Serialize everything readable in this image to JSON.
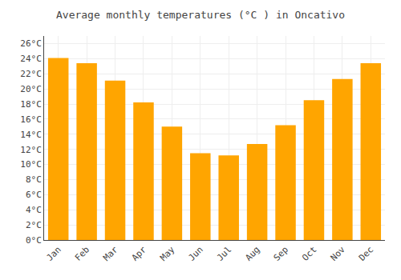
{
  "chart_data": {
    "type": "bar",
    "title": "Average monthly temperatures (°C ) in Oncativo",
    "categories": [
      "Jan",
      "Feb",
      "Mar",
      "Apr",
      "May",
      "Jun",
      "Jul",
      "Aug",
      "Sep",
      "Oct",
      "Nov",
      "Dec"
    ],
    "values": [
      24.1,
      23.4,
      21.1,
      18.2,
      15.0,
      11.5,
      11.2,
      12.7,
      15.2,
      18.5,
      21.3,
      23.4
    ],
    "color": "#FFA500",
    "ylim": [
      0,
      27
    ],
    "yticks": [
      {
        "value": 0,
        "label": "0°C"
      },
      {
        "value": 2,
        "label": "2°C"
      },
      {
        "value": 4,
        "label": "4°C"
      },
      {
        "value": 6,
        "label": "6°C"
      },
      {
        "value": 8,
        "label": "8°C"
      },
      {
        "value": 10,
        "label": "10°C"
      },
      {
        "value": 12,
        "label": "12°C"
      },
      {
        "value": 14,
        "label": "14°C"
      },
      {
        "value": 16,
        "label": "16°C"
      },
      {
        "value": 18,
        "label": "18°C"
      },
      {
        "value": 20,
        "label": "20°C"
      },
      {
        "value": 22,
        "label": "22°C"
      },
      {
        "value": 24,
        "label": "24°C"
      },
      {
        "value": 26,
        "label": "26°C"
      }
    ],
    "grid": true
  }
}
